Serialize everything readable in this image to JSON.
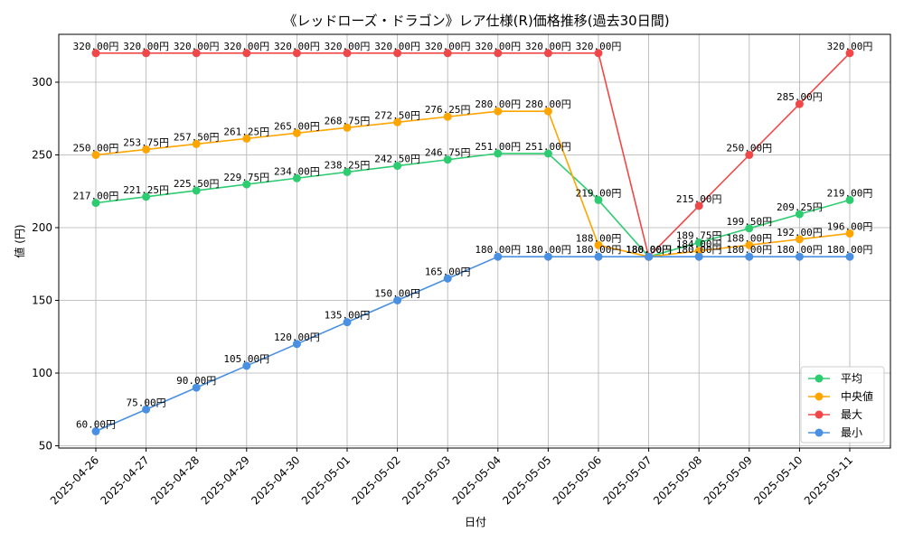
{
  "chart_data": {
    "type": "line",
    "title": "《レッドローズ・ドラゴン》レア仕様(R)価格推移(過去30日間)",
    "xlabel": "日付",
    "ylabel": "値 (円)",
    "ylim": [
      50,
      330
    ],
    "yticks": [
      50,
      100,
      150,
      200,
      250,
      300
    ],
    "grid": true,
    "legend_position": "lower-right",
    "label_suffix": "円",
    "x": [
      "2025-04-26",
      "2025-04-27",
      "2025-04-28",
      "2025-04-29",
      "2025-04-30",
      "2025-05-01",
      "2025-05-02",
      "2025-05-03",
      "2025-05-04",
      "2025-05-05",
      "2025-05-06",
      "2025-05-07",
      "2025-05-08",
      "2025-05-09",
      "2025-05-10",
      "2025-05-11"
    ],
    "series": [
      {
        "name": "平均",
        "color": "#2ecc71",
        "values": [
          217.0,
          221.25,
          225.5,
          229.75,
          234.0,
          238.25,
          242.5,
          246.75,
          251.0,
          251.0,
          219.0,
          180.0,
          189.75,
          199.5,
          209.25,
          219.0
        ]
      },
      {
        "name": "中央値",
        "color": "#ffa500",
        "values": [
          250.0,
          253.75,
          257.5,
          261.25,
          265.0,
          268.75,
          272.5,
          276.25,
          280.0,
          280.0,
          188.0,
          180.0,
          184.0,
          188.0,
          192.0,
          196.0
        ]
      },
      {
        "name": "最大",
        "color": "#f04848",
        "values": [
          320.0,
          320.0,
          320.0,
          320.0,
          320.0,
          320.0,
          320.0,
          320.0,
          320.0,
          320.0,
          320.0,
          180.0,
          215.0,
          250.0,
          285.0,
          320.0
        ]
      },
      {
        "name": "最小",
        "color": "#4a90e2",
        "values": [
          60.0,
          75.0,
          90.0,
          105.0,
          120.0,
          135.0,
          150.0,
          165.0,
          180.0,
          180.0,
          180.0,
          180.0,
          180.0,
          180.0,
          180.0,
          180.0
        ]
      }
    ]
  }
}
